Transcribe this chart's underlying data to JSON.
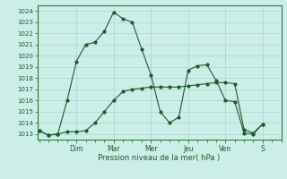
{
  "title": "",
  "xlabel": "Pression niveau de la mer( hPa )",
  "ylabel": "",
  "bg_color": "#cceee8",
  "grid_color": "#aad4ce",
  "line_color": "#1a5c2a",
  "spine_color": "#2d7a3a",
  "ylim": [
    1012.5,
    1024.5
  ],
  "yticks": [
    1013,
    1014,
    1015,
    1016,
    1017,
    1018,
    1019,
    1020,
    1021,
    1022,
    1023,
    1024
  ],
  "day_labels": [
    "Dim",
    "Mar",
    "Mer",
    "Jeu",
    "Ven",
    "S"
  ],
  "day_positions": [
    2,
    4,
    6,
    8,
    10,
    12
  ],
  "xlim": [
    -0.1,
    12.8
  ],
  "line1_x": [
    0,
    0.5,
    1,
    1.5,
    2,
    2.5,
    3,
    3.5,
    4,
    4.5,
    5,
    5.5,
    6,
    6.5,
    7,
    7.5,
    8,
    8.5,
    9,
    9.5,
    10,
    10.5,
    11,
    11.5,
    12
  ],
  "line1_y": [
    1013.3,
    1012.9,
    1013.0,
    1013.2,
    1013.2,
    1013.3,
    1014.0,
    1015.0,
    1016.0,
    1016.8,
    1017.0,
    1017.1,
    1017.2,
    1017.2,
    1017.2,
    1017.2,
    1017.3,
    1017.4,
    1017.5,
    1017.6,
    1017.6,
    1017.5,
    1013.4,
    1013.1,
    1013.9
  ],
  "line2_x": [
    0,
    0.5,
    1,
    1.5,
    2,
    2.5,
    3,
    3.5,
    4,
    4.5,
    5,
    5.5,
    6,
    6.5,
    7,
    7.5,
    8,
    8.5,
    9,
    9.5,
    10,
    10.5,
    11,
    11.5,
    12
  ],
  "line2_y": [
    1013.3,
    1012.9,
    1013.0,
    1016.0,
    1019.5,
    1021.0,
    1021.2,
    1022.2,
    1023.9,
    1023.3,
    1023.0,
    1020.6,
    1018.3,
    1015.0,
    1014.0,
    1014.5,
    1018.7,
    1019.1,
    1019.2,
    1017.8,
    1016.0,
    1015.9,
    1013.1,
    1013.0,
    1013.9
  ]
}
